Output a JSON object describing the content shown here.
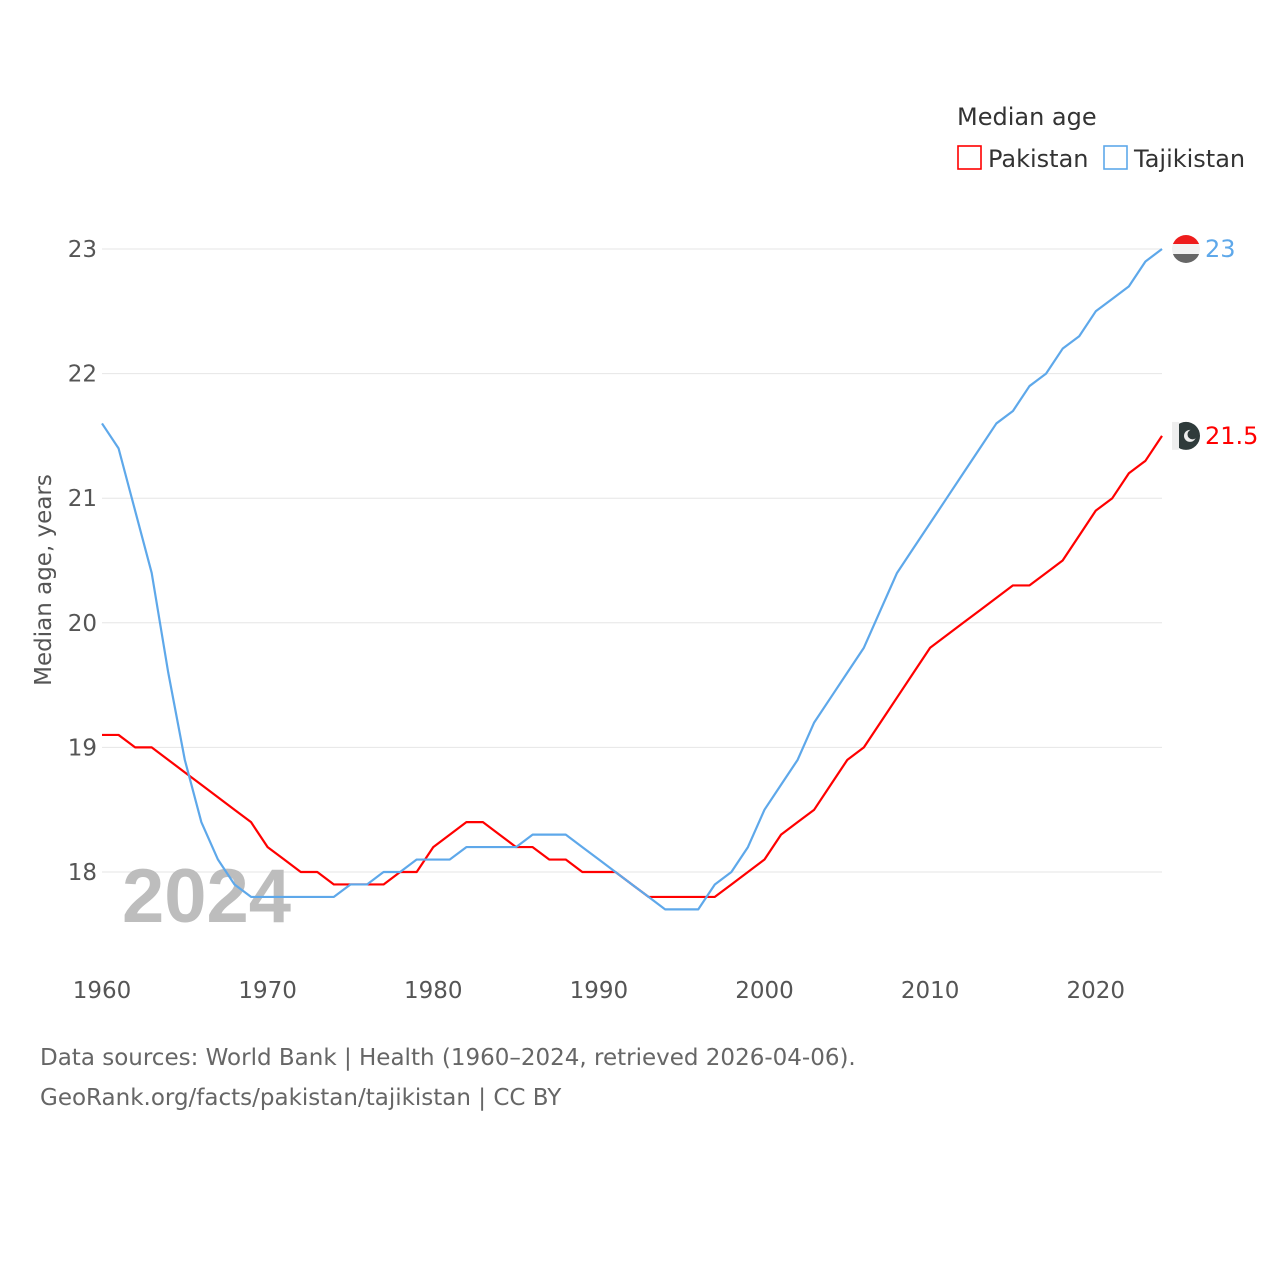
{
  "chart_data": {
    "type": "line",
    "title": "",
    "legend_title": "Median age",
    "legend_position": "top-right",
    "ylabel": "Median age, years",
    "xlabel": "",
    "watermark_year": "2024",
    "xlim": [
      1960,
      2024
    ],
    "ylim": [
      17.4,
      23.3
    ],
    "xticks": [
      1960,
      1970,
      1980,
      1990,
      2000,
      2010,
      2020
    ],
    "yticks": [
      18,
      19,
      20,
      21,
      22,
      23
    ],
    "grid": true,
    "x": [
      1960,
      1961,
      1962,
      1963,
      1964,
      1965,
      1966,
      1967,
      1968,
      1969,
      1970,
      1971,
      1972,
      1973,
      1974,
      1975,
      1976,
      1977,
      1978,
      1979,
      1980,
      1981,
      1982,
      1983,
      1984,
      1985,
      1986,
      1987,
      1988,
      1989,
      1990,
      1991,
      1992,
      1993,
      1994,
      1995,
      1996,
      1997,
      1998,
      1999,
      2000,
      2001,
      2002,
      2003,
      2004,
      2005,
      2006,
      2007,
      2008,
      2009,
      2010,
      2011,
      2012,
      2013,
      2014,
      2015,
      2016,
      2017,
      2018,
      2019,
      2020,
      2021,
      2022,
      2023,
      2024
    ],
    "series": [
      {
        "name": "Pakistan",
        "color": "#ff0000",
        "end_label": "21.5",
        "values": [
          19.1,
          19.1,
          19.0,
          19.0,
          18.9,
          18.8,
          18.7,
          18.6,
          18.5,
          18.4,
          18.2,
          18.1,
          18.0,
          18.0,
          17.9,
          17.9,
          17.9,
          17.9,
          18.0,
          18.0,
          18.2,
          18.3,
          18.4,
          18.4,
          18.3,
          18.2,
          18.2,
          18.1,
          18.1,
          18.0,
          18.0,
          18.0,
          17.9,
          17.8,
          17.8,
          17.8,
          17.8,
          17.8,
          17.9,
          18.0,
          18.1,
          18.3,
          18.4,
          18.5,
          18.7,
          18.9,
          19.0,
          19.2,
          19.4,
          19.6,
          19.8,
          19.9,
          20.0,
          20.1,
          20.2,
          20.3,
          20.3,
          20.4,
          20.5,
          20.7,
          20.9,
          21.0,
          21.2,
          21.3,
          21.5
        ]
      },
      {
        "name": "Tajikistan",
        "color": "#5ea8ea",
        "end_label": "23",
        "values": [
          21.6,
          21.4,
          20.9,
          20.4,
          19.6,
          18.9,
          18.4,
          18.1,
          17.9,
          17.8,
          17.8,
          17.8,
          17.8,
          17.8,
          17.8,
          17.9,
          17.9,
          18.0,
          18.0,
          18.1,
          18.1,
          18.1,
          18.2,
          18.2,
          18.2,
          18.2,
          18.3,
          18.3,
          18.3,
          18.2,
          18.1,
          18.0,
          17.9,
          17.8,
          17.7,
          17.7,
          17.7,
          17.9,
          18.0,
          18.2,
          18.5,
          18.7,
          18.9,
          19.2,
          19.4,
          19.6,
          19.8,
          20.1,
          20.4,
          20.6,
          20.8,
          21.0,
          21.2,
          21.4,
          21.6,
          21.7,
          21.9,
          22.0,
          22.2,
          22.3,
          22.5,
          22.6,
          22.7,
          22.9,
          23.0
        ]
      }
    ]
  },
  "footer": {
    "line1": "Data sources: World Bank | Health (1960–2024, retrieved 2026-04-06).",
    "line2": "GeoRank.org/facts/pakistan/tajikistan | CC BY"
  }
}
